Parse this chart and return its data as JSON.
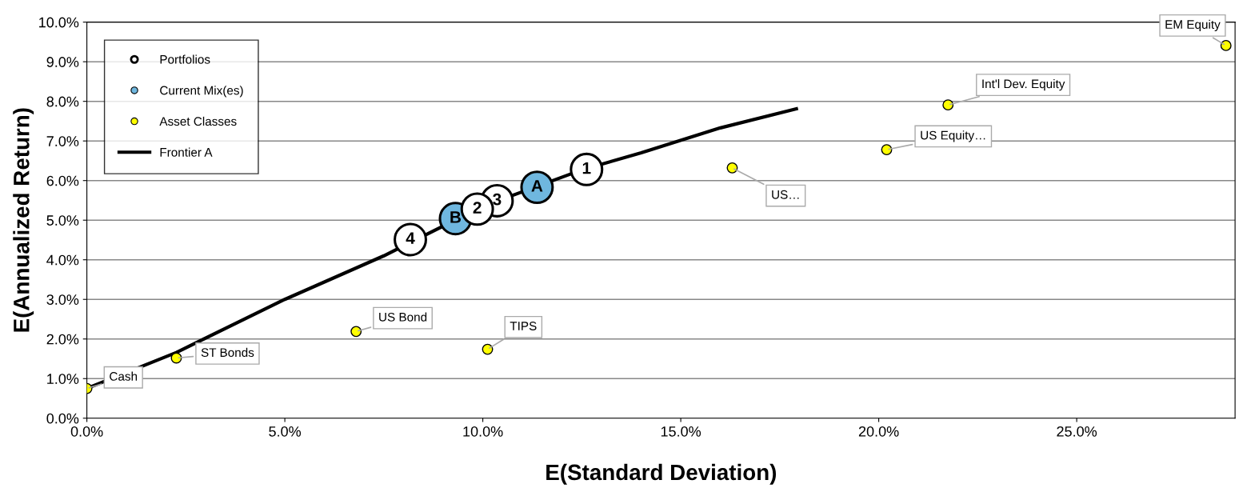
{
  "chart_data": {
    "type": "scatter",
    "xlabel": "E(Standard Deviation)",
    "ylabel": "E(Annualized Return)",
    "xlim": [
      0,
      29
    ],
    "ylim": [
      0,
      10
    ],
    "xticks": [
      {
        "value": 0,
        "label": "0.0%"
      },
      {
        "value": 5,
        "label": "5.0%"
      },
      {
        "value": 10,
        "label": "10.0%"
      },
      {
        "value": 15,
        "label": "15.0%"
      },
      {
        "value": 20,
        "label": "20.0%"
      },
      {
        "value": 25,
        "label": "25.0%"
      }
    ],
    "yticks": [
      {
        "value": 0,
        "label": "0.0%"
      },
      {
        "value": 1,
        "label": "1.0%"
      },
      {
        "value": 2,
        "label": "2.0%"
      },
      {
        "value": 3,
        "label": "3.0%"
      },
      {
        "value": 4,
        "label": "4.0%"
      },
      {
        "value": 5,
        "label": "5.0%"
      },
      {
        "value": 6,
        "label": "6.0%"
      },
      {
        "value": 7,
        "label": "7.0%"
      },
      {
        "value": 8,
        "label": "8.0%"
      },
      {
        "value": 9,
        "label": "9.0%"
      },
      {
        "value": 10,
        "label": "10.0%"
      }
    ],
    "grid": "y",
    "legend": "top left",
    "series": [
      {
        "name": "Portfolios",
        "color": "#ffffff",
        "x": [
          12.62,
          9.86,
          10.36,
          8.17
        ],
        "values": [
          6.28,
          5.28,
          5.49,
          4.51
        ]
      },
      {
        "name": "Current Mix(es)",
        "color": "#6fb7df",
        "x": [
          11.37,
          9.31
        ],
        "values": [
          5.83,
          5.04
        ]
      },
      {
        "name": "Asset Classes",
        "color": "#ffff00",
        "x": [
          0,
          2.26,
          6.8,
          10.12,
          16.3,
          20.2,
          21.75,
          28.77
        ],
        "values": [
          0.75,
          1.52,
          2.19,
          1.74,
          6.32,
          6.78,
          7.91,
          9.41
        ]
      },
      {
        "name": "Frontier A",
        "type": "line",
        "color": "#000000",
        "x": [
          0,
          2.26,
          5,
          7.5,
          10,
          12.5,
          14,
          16,
          17.92
        ],
        "values": [
          0.75,
          1.66,
          3.0,
          4.1,
          5.35,
          6.27,
          6.7,
          7.33,
          7.81
        ]
      }
    ],
    "annotations": [
      {
        "text": "1",
        "x": 12.62,
        "y": 6.28
      },
      {
        "text": "2",
        "x": 9.86,
        "y": 5.28
      },
      {
        "text": "3",
        "x": 10.36,
        "y": 5.49
      },
      {
        "text": "4",
        "x": 8.17,
        "y": 4.51
      },
      {
        "text": "A",
        "x": 11.37,
        "y": 5.83
      },
      {
        "text": "B",
        "x": 9.31,
        "y": 5.04
      },
      {
        "text": "Cash",
        "x": 0,
        "y": 0.75
      },
      {
        "text": "ST Bonds",
        "x": 2.26,
        "y": 1.52
      },
      {
        "text": "US Bond",
        "x": 6.8,
        "y": 2.19
      },
      {
        "text": "TIPS",
        "x": 10.12,
        "y": 1.74
      },
      {
        "text": "US…",
        "x": 16.3,
        "y": 6.32
      },
      {
        "text": "US Equity…",
        "x": 20.2,
        "y": 6.78
      },
      {
        "text": "Int'l Dev. Equity",
        "x": 21.75,
        "y": 7.91
      },
      {
        "text": "EM Equity",
        "x": 28.77,
        "y": 9.41
      }
    ]
  }
}
